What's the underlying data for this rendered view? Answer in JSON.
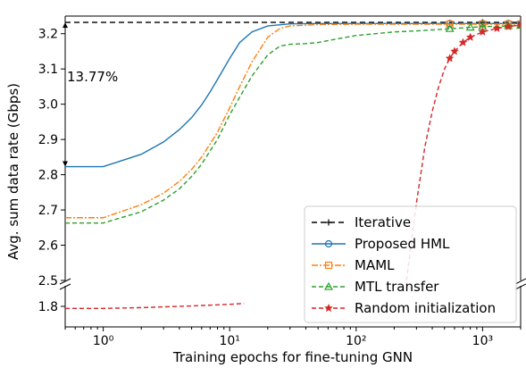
{
  "chart_data": {
    "type": "line",
    "title": "",
    "xlabel": "Training epochs for fine-tuning GNN",
    "ylabel": "Avg. sum data rate (Gbps)",
    "x_scale": "log",
    "xlim": [
      0.5,
      2000
    ],
    "x_ticks": [
      {
        "value": 1,
        "label": "10⁰"
      },
      {
        "value": 10,
        "label": "10¹"
      },
      {
        "value": 100,
        "label": "10²"
      },
      {
        "value": 1000,
        "label": "10³"
      }
    ],
    "y_axis_break": true,
    "ylim_upper": [
      2.5,
      3.25
    ],
    "ylim_lower": [
      1.75,
      1.85
    ],
    "y_ticks_upper": [
      2.5,
      2.6,
      2.7,
      2.8,
      2.9,
      3.0,
      3.1,
      3.2
    ],
    "y_ticks_lower": [
      1.8
    ],
    "legend_position": "lower-right",
    "grid": false,
    "annotation": {
      "text": "13.77%",
      "from_y": 2.823,
      "to_y": 3.232,
      "x": 0.5
    },
    "series": [
      {
        "name": "Iterative",
        "color": "#000000",
        "dash": "6,4",
        "marker": "plus",
        "x": [
          0.5,
          1,
          10,
          100,
          1000,
          2000
        ],
        "y": [
          3.232,
          3.232,
          3.232,
          3.232,
          3.232,
          3.232
        ]
      },
      {
        "name": "Proposed HML",
        "color": "#1f77b4",
        "dash": "",
        "marker": "circle",
        "x": [
          0.5,
          1,
          2,
          3,
          4,
          5,
          6,
          7,
          8,
          10,
          12,
          15,
          20,
          30,
          50,
          100,
          300,
          550,
          1000,
          1600,
          2000
        ],
        "y": [
          2.823,
          2.823,
          2.858,
          2.893,
          2.928,
          2.962,
          2.998,
          3.035,
          3.07,
          3.13,
          3.175,
          3.205,
          3.222,
          3.228,
          3.229,
          3.229,
          3.229,
          3.229,
          3.229,
          3.229,
          3.229
        ]
      },
      {
        "name": "MAML",
        "color": "#ff7f0e",
        "dash": "7,2,2,2",
        "marker": "square",
        "x": [
          0.5,
          1,
          2,
          3,
          4,
          5,
          6,
          8,
          10,
          12,
          15,
          20,
          25,
          30,
          50,
          100,
          300,
          550,
          1000,
          1600,
          2000
        ],
        "y": [
          2.678,
          2.678,
          2.715,
          2.748,
          2.781,
          2.815,
          2.85,
          2.92,
          2.99,
          3.05,
          3.12,
          3.19,
          3.215,
          3.222,
          3.226,
          3.227,
          3.227,
          3.227,
          3.227,
          3.227,
          3.227
        ]
      },
      {
        "name": "MTL transfer",
        "color": "#2ca02c",
        "dash": "5,3",
        "marker": "triangle",
        "x": [
          0.5,
          1,
          2,
          3,
          4,
          5,
          6,
          8,
          10,
          12,
          15,
          20,
          25,
          30,
          40,
          50,
          70,
          100,
          200,
          300,
          500,
          550,
          800,
          1000,
          1600,
          2000
        ],
        "y": [
          2.663,
          2.663,
          2.695,
          2.728,
          2.76,
          2.795,
          2.83,
          2.9,
          2.97,
          3.02,
          3.08,
          3.14,
          3.165,
          3.17,
          3.172,
          3.175,
          3.185,
          3.195,
          3.205,
          3.208,
          3.213,
          3.214,
          3.218,
          3.22,
          3.222,
          3.223
        ]
      },
      {
        "name": "Random initialization",
        "color": "#d62728",
        "dash": "5,3",
        "marker": "star",
        "x": [
          0.5,
          1,
          2,
          5,
          10,
          13
        ],
        "y": [
          1.795,
          1.795,
          1.797,
          1.801,
          1.805,
          1.807
        ],
        "x_upper": [
          250,
          300,
          350,
          400,
          450,
          500,
          550,
          600,
          700,
          800,
          1000,
          1300,
          1600,
          2000
        ],
        "y_upper": [
          2.5,
          2.72,
          2.88,
          2.98,
          3.05,
          3.1,
          3.13,
          3.15,
          3.175,
          3.19,
          3.205,
          3.215,
          3.22,
          3.225
        ]
      }
    ]
  }
}
